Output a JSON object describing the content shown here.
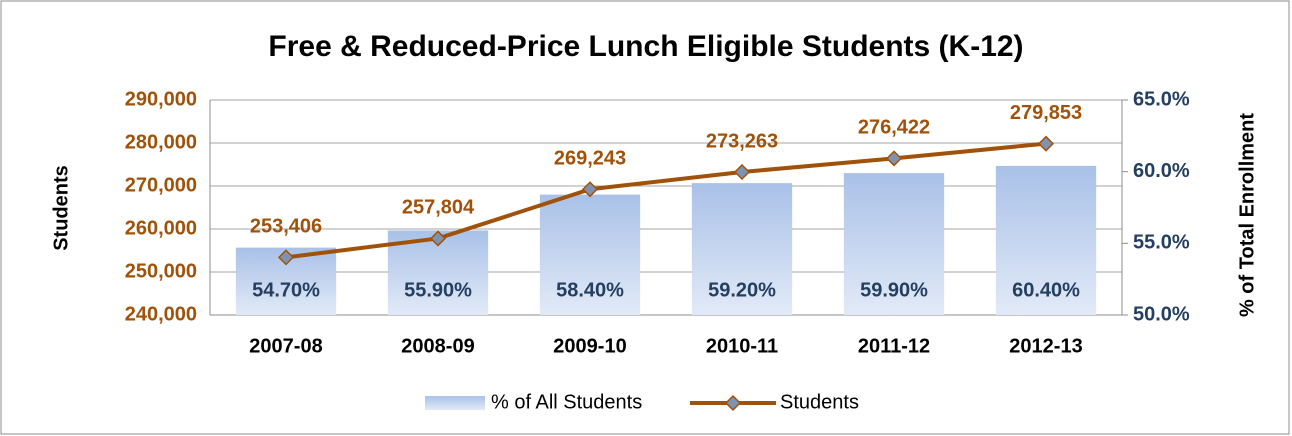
{
  "chart_data": {
    "type": "bar",
    "title": "Free & Reduced-Price Lunch Eligible Students (K-12)",
    "y_label": "Students",
    "y2_label": "% of Total Enrollment",
    "categories": [
      "2007-08",
      "2008-09",
      "2009-10",
      "2010-11",
      "2011-12",
      "2012-13"
    ],
    "series": [
      {
        "name": "% of All Students",
        "type": "bar",
        "axis": "y2",
        "color": "#a9c1e8",
        "values": [
          54.7,
          55.9,
          58.4,
          59.2,
          59.9,
          60.4
        ],
        "value_labels": [
          "54.70%",
          "55.90%",
          "58.40%",
          "59.20%",
          "59.90%",
          "60.40%"
        ]
      },
      {
        "name": "Students",
        "type": "line",
        "color": "#a0520a",
        "marker_color": "#7f93b0",
        "values": [
          253406,
          257804,
          269243,
          273263,
          276422,
          279853
        ],
        "value_labels": [
          "253,406",
          "257,804",
          "269,243",
          "273,263",
          "276,422",
          "279,853"
        ]
      }
    ],
    "ylim": [
      240000,
      290000
    ],
    "yticks": [
      {
        "value": 240000,
        "label": "240,000"
      },
      {
        "value": 250000,
        "label": "250,000"
      },
      {
        "value": 260000,
        "label": "260,000"
      },
      {
        "value": 270000,
        "label": "270,000"
      },
      {
        "value": 280000,
        "label": "280,000"
      },
      {
        "value": 290000,
        "label": "290,000"
      }
    ],
    "y2lim": [
      50,
      65
    ],
    "y2ticks": [
      {
        "value": 50,
        "label": "50.0%"
      },
      {
        "value": 55,
        "label": "55.0%"
      },
      {
        "value": 60,
        "label": "60.0%"
      },
      {
        "value": 65,
        "label": "65.0%"
      }
    ],
    "grid": true,
    "legend": "bottom"
  }
}
